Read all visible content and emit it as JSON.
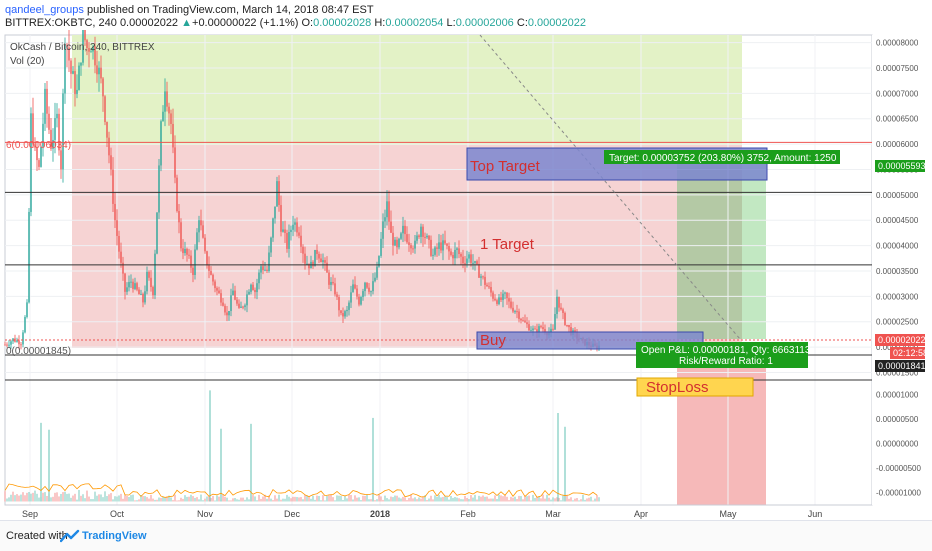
{
  "header": {
    "author": "qandeel_groups",
    "published": " published on TradingView.com, March 14, 2018 08:47 EST",
    "symbol": "BITTREX:OKBTC, 240",
    "last": "0.00002022",
    "change_arrow": "▲",
    "change": "+0.00000022 (+1.1%)",
    "open_label": "O:",
    "open": "0.00002028",
    "high_label": "H:",
    "high": "0.00002054",
    "low_label": "L:",
    "low": "0.00002006",
    "close_label": "C:",
    "close": "0.00002022"
  },
  "legend": {
    "title": "OkCash / Bitcoin, 240, BITTREX",
    "volume": "Vol (20)"
  },
  "footer": {
    "created_with": "Created with",
    "brand": "TradingView"
  },
  "colors": {
    "up": "#26a69a",
    "down": "#ef5350",
    "profit_zone": "#c8e6a0",
    "loss_zone": "#f4b4b4",
    "target_box": "#5c6bc0",
    "badge_green": "#1b9e1b",
    "price_red": "#ef5350"
  },
  "chart_data": {
    "type": "candlestick",
    "x_ticks": [
      "Sep",
      "Oct",
      "Nov",
      "Dec",
      "2018",
      "Feb",
      "Mar",
      "Apr",
      "May",
      "Jun"
    ],
    "price_ticks": [
      "0.00008000",
      "0.00007500",
      "0.00007000",
      "0.00006500",
      "0.00006000",
      "0.00005500",
      "0.00005000",
      "0.00004500",
      "0.00004000",
      "0.00003500",
      "0.00003000",
      "0.00002500",
      "0.00002000",
      "0.00001500"
    ],
    "volume_ticks": [
      "0.00001000",
      "0.00000500",
      "0.00000000",
      "-0.00000500",
      "-0.00001000"
    ],
    "ylim": [
      1.45e-05,
      8.15e-05
    ],
    "horizontal_levels": [
      6.034e-05,
      5.05e-05,
      3.62e-05,
      1.845e-05
    ],
    "level_labels": {
      "top": "6(0.00006034)",
      "bottom": "0(0.00001845)"
    },
    "price_path": [
      [
        0,
        2.05e-05
      ],
      [
        8,
        2.15e-05
      ],
      [
        16,
        2.1e-05
      ],
      [
        22,
        2.8e-05
      ],
      [
        26,
        6.5e-05
      ],
      [
        30,
        5.8e-05
      ],
      [
        34,
        5.5e-05
      ],
      [
        40,
        6.9e-05
      ],
      [
        46,
        6e-05
      ],
      [
        52,
        6.5e-05
      ],
      [
        56,
        5.6e-05
      ],
      [
        60,
        8.2e-05
      ],
      [
        66,
        7.4e-05
      ],
      [
        72,
        7e-05
      ],
      [
        78,
        8.2e-05
      ],
      [
        82,
        7.9e-05
      ],
      [
        86,
        8e-05
      ],
      [
        92,
        7.6e-05
      ],
      [
        98,
        7e-05
      ],
      [
        104,
        5.8e-05
      ],
      [
        110,
        4.5e-05
      ],
      [
        116,
        3.6e-05
      ],
      [
        120,
        3.1e-05
      ],
      [
        126,
        3.3e-05
      ],
      [
        132,
        3.1e-05
      ],
      [
        138,
        2.9e-05
      ],
      [
        142,
        3.4e-05
      ],
      [
        148,
        3.1e-05
      ],
      [
        152,
        4.7e-05
      ],
      [
        156,
        6.3e-05
      ],
      [
        160,
        7.2e-05
      ],
      [
        166,
        6.4e-05
      ],
      [
        170,
        5.2e-05
      ],
      [
        176,
        4e-05
      ],
      [
        182,
        3.8e-05
      ],
      [
        188,
        3.5e-05
      ],
      [
        194,
        4.6e-05
      ],
      [
        200,
        3.8e-05
      ],
      [
        206,
        3.4e-05
      ],
      [
        212,
        3.1e-05
      ],
      [
        218,
        2.9e-05
      ],
      [
        222,
        2.6e-05
      ],
      [
        228,
        3.1e-05
      ],
      [
        234,
        2.7e-05
      ],
      [
        240,
        2.9e-05
      ],
      [
        246,
        3.3e-05
      ],
      [
        250,
        3.1e-05
      ],
      [
        256,
        3.6e-05
      ],
      [
        262,
        3.5e-05
      ],
      [
        266,
        4.1e-05
      ],
      [
        272,
        5.2e-05
      ],
      [
        276,
        4.4e-05
      ],
      [
        282,
        4e-05
      ],
      [
        288,
        4.5e-05
      ],
      [
        294,
        4.3e-05
      ],
      [
        300,
        3.7e-05
      ],
      [
        306,
        3.6e-05
      ],
      [
        312,
        3.9e-05
      ],
      [
        318,
        3.7e-05
      ],
      [
        324,
        3.3e-05
      ],
      [
        330,
        3.1e-05
      ],
      [
        336,
        2.6e-05
      ],
      [
        342,
        2.7e-05
      ],
      [
        348,
        3.2e-05
      ],
      [
        354,
        2.9e-05
      ],
      [
        360,
        3.3e-05
      ],
      [
        366,
        3.1e-05
      ],
      [
        372,
        3.5e-05
      ],
      [
        378,
        4.4e-05
      ],
      [
        382,
        4.8e-05
      ],
      [
        386,
        4.2e-05
      ],
      [
        392,
        3.9e-05
      ],
      [
        398,
        4.3e-05
      ],
      [
        404,
        4.1e-05
      ],
      [
        410,
        4e-05
      ],
      [
        416,
        4.4e-05
      ],
      [
        422,
        4.1e-05
      ],
      [
        428,
        3.8e-05
      ],
      [
        434,
        4e-05
      ],
      [
        440,
        4e-05
      ],
      [
        446,
        3.8e-05
      ],
      [
        452,
        3.9e-05
      ],
      [
        458,
        3.7e-05
      ],
      [
        464,
        3.8e-05
      ],
      [
        470,
        3.6e-05
      ],
      [
        476,
        3.4e-05
      ],
      [
        482,
        3.2e-05
      ],
      [
        488,
        3e-05
      ],
      [
        494,
        2.9e-05
      ],
      [
        500,
        3e-05
      ],
      [
        506,
        2.8e-05
      ],
      [
        512,
        2.7e-05
      ],
      [
        518,
        2.5e-05
      ],
      [
        524,
        2.4e-05
      ],
      [
        530,
        2.3e-05
      ],
      [
        536,
        2.4e-05
      ],
      [
        542,
        2.3e-05
      ],
      [
        548,
        2.3e-05
      ],
      [
        552,
        3e-05
      ],
      [
        556,
        2.7e-05
      ],
      [
        560,
        2.5e-05
      ],
      [
        566,
        2.3e-05
      ],
      [
        572,
        2.2e-05
      ],
      [
        578,
        2.1e-05
      ],
      [
        584,
        2.05e-05
      ],
      [
        590,
        2e-05
      ],
      [
        594,
        2.022e-05
      ]
    ],
    "volume_spikes": [
      [
        36,
        4.2e-06
      ],
      [
        44,
        2.8e-06
      ],
      [
        205,
        1.08e-05
      ],
      [
        216,
        3e-06
      ],
      [
        246,
        4e-06
      ],
      [
        368,
        5.2e-06
      ],
      [
        553,
        6.2e-06
      ],
      [
        560,
        3.4e-06
      ]
    ],
    "price_badges": {
      "target_level": "0.00005593",
      "current": "0.00002022",
      "countdown": "02:12:58",
      "stop_level": "0.00001841"
    },
    "position": {
      "target_text": "Target: 0.00003752 (203.80%) 3752, Amount: 1250",
      "pnl_text": "Open P&L: 0.00000181, Qty: 6663113",
      "rr_text": "Risk/Reward Ratio: 1"
    },
    "annotations": [
      "Top  Target",
      "1 Target",
      "Buy",
      "StopLoss"
    ]
  }
}
